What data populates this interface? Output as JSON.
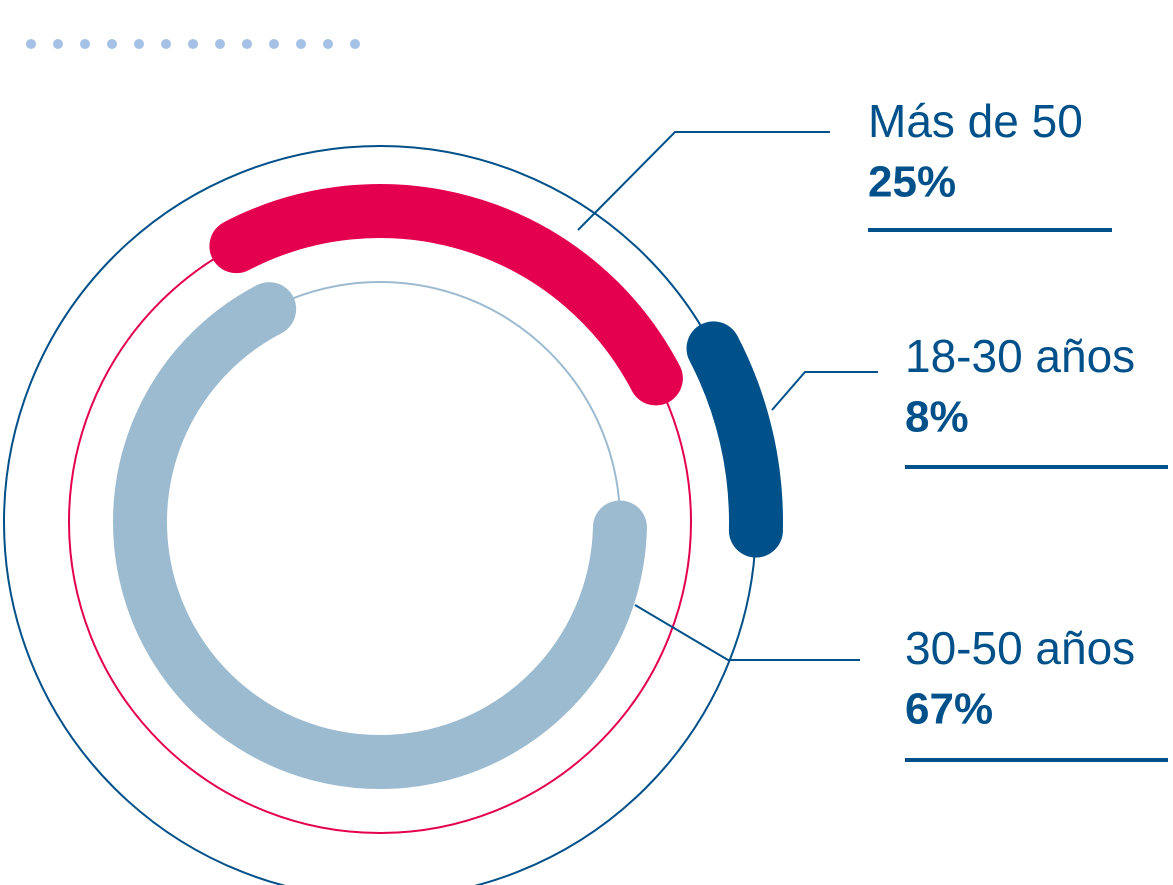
{
  "chart_data": {
    "type": "radial",
    "categories": [
      "Más de 50",
      "18-30 años",
      "30-50 años"
    ],
    "values": [
      25,
      8,
      67
    ],
    "value_labels": [
      "25%",
      "8%",
      "67%"
    ],
    "colors": [
      "#e4004f",
      "#00508a",
      "#9dbbd0"
    ]
  }
}
